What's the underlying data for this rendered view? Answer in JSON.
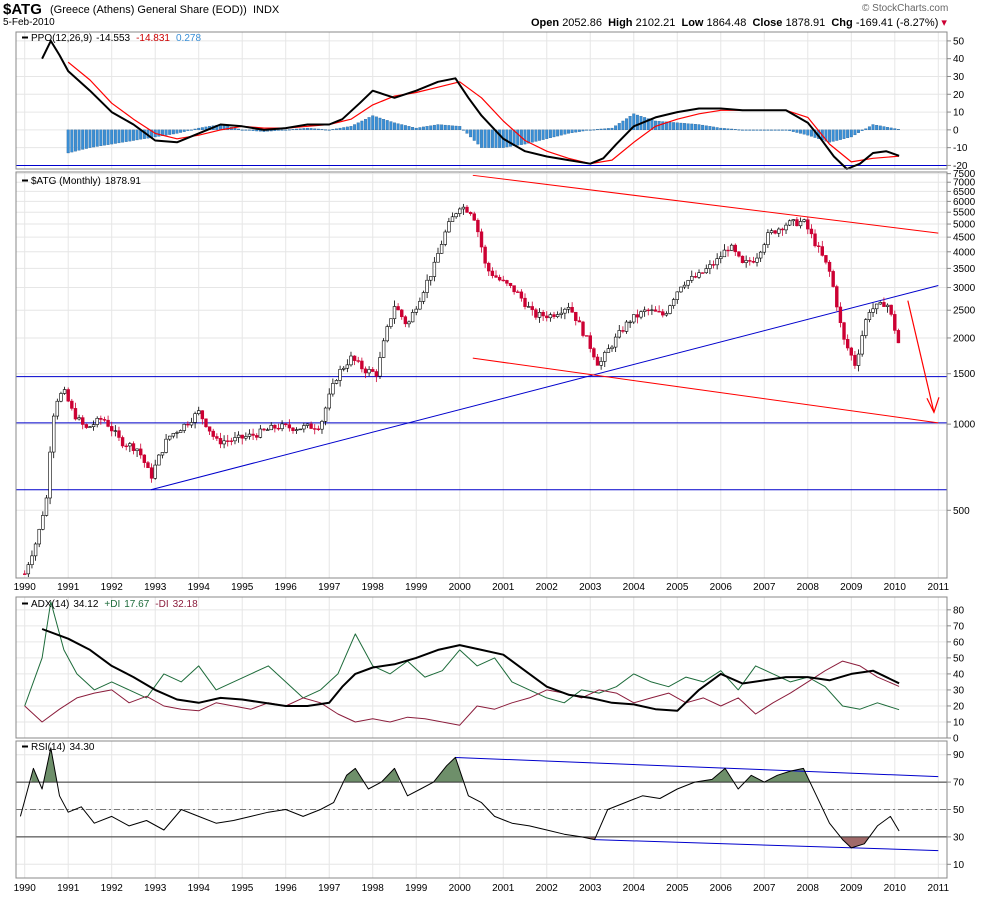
{
  "header": {
    "symbol": "$ATG",
    "name": "(Greece (Athens) General Share (EOD))",
    "exchange": "INDX",
    "date": "5-Feb-2010",
    "open_label": "Open",
    "open": "2052.86",
    "high_label": "High",
    "high": "2102.21",
    "low_label": "Low",
    "low": "1864.48",
    "close_label": "Close",
    "close": "1878.91",
    "chg_label": "Chg",
    "chg": "-169.41 (-8.27%)",
    "watermark": "© StockCharts.com"
  },
  "colors": {
    "price_up": "#000000",
    "price_down": "#cc0033",
    "ppo_line": "#000000",
    "ppo_signal": "#ff0000",
    "histogram": "#3a8fd6",
    "trendline_blue": "#0000cc",
    "channel_red": "#ff0000",
    "plus_di": "#1d6b3a",
    "minus_di": "#8b1d3c",
    "rsi_fill_overbought": "#6e8f6a",
    "rsi_fill_oversold": "#a06a6a"
  },
  "chart_data": [
    {
      "type": "line",
      "panel": "PPO",
      "legend": [
        {
          "text": "PPO(12,26,9)",
          "value": "-14.553"
        },
        {
          "text": "",
          "value": "-14.831"
        },
        {
          "text": "",
          "value": "0.278"
        }
      ],
      "ylim": [
        -22,
        55
      ],
      "yticks": [
        50,
        40,
        30,
        20,
        10,
        0,
        -10,
        -20
      ],
      "hline": -20,
      "series": [
        {
          "role": "ppo",
          "x": [
            1990.4,
            1990.6,
            1990.8,
            1991.0,
            1991.5,
            1992.0,
            1992.5,
            1993.0,
            1993.5,
            1994.0,
            1994.5,
            1995.0,
            1995.5,
            1996.0,
            1996.5,
            1997.0,
            1997.3,
            1997.7,
            1998.0,
            1998.5,
            1999.0,
            1999.5,
            1999.9,
            2000.2,
            2000.5,
            2001.0,
            2001.5,
            2002.0,
            2002.5,
            2003.0,
            2003.3,
            2003.6,
            2004.0,
            2004.5,
            2005.0,
            2005.5,
            2006.0,
            2006.5,
            2007.0,
            2007.5,
            2008.0,
            2008.3,
            2008.6,
            2008.9,
            2009.2,
            2009.5,
            2009.8,
            2010.1
          ],
          "values": [
            40,
            50,
            42,
            33,
            22,
            10,
            3,
            -6,
            -7,
            -2,
            3,
            2,
            0,
            1,
            3,
            3,
            6,
            15,
            22,
            18,
            22,
            27,
            29,
            18,
            8,
            -5,
            -12,
            -15,
            -17,
            -19,
            -16,
            -8,
            2,
            7,
            10,
            12,
            12,
            11,
            11,
            11,
            4,
            -5,
            -15,
            -22,
            -19,
            -13,
            -12,
            -14.553
          ]
        },
        {
          "role": "signal",
          "x": [
            1991.0,
            1991.5,
            1992.0,
            1992.5,
            1993.0,
            1993.5,
            1994.0,
            1994.5,
            1995.0,
            1995.5,
            1996.0,
            1996.5,
            1997.0,
            1997.5,
            1998.0,
            1998.5,
            1999.0,
            1999.5,
            2000.0,
            2000.5,
            2001.0,
            2001.5,
            2002.0,
            2002.5,
            2003.0,
            2003.5,
            2004.0,
            2004.5,
            2005.0,
            2005.5,
            2006.0,
            2006.5,
            2007.0,
            2007.5,
            2008.0,
            2008.5,
            2009.0,
            2009.5,
            2010.1
          ],
          "values": [
            38,
            28,
            15,
            6,
            -2,
            -5,
            -3,
            0,
            2,
            1,
            1,
            2,
            3,
            6,
            14,
            19,
            21,
            24,
            27,
            18,
            5,
            -6,
            -12,
            -16,
            -19,
            -17,
            -7,
            2,
            6,
            9,
            11,
            11,
            11,
            11,
            7,
            -8,
            -18,
            -16,
            -14.831
          ]
        }
      ],
      "histogram": {
        "x": [
          1991.0,
          1991.5,
          1992.0,
          1992.5,
          1993.0,
          1993.5,
          1994.0,
          1994.5,
          1995.0,
          1995.5,
          1996.0,
          1996.5,
          1997.0,
          1997.5,
          1998.0,
          1998.5,
          1999.0,
          1999.5,
          2000.0,
          2000.5,
          2001.0,
          2001.5,
          2002.0,
          2002.5,
          2003.0,
          2003.5,
          2004.0,
          2004.5,
          2005.0,
          2005.5,
          2006.0,
          2006.5,
          2007.0,
          2007.5,
          2008.0,
          2008.5,
          2009.0,
          2009.5,
          2010.1
        ],
        "values": [
          -13,
          -10,
          -8,
          -6,
          -4,
          -2,
          1,
          3,
          0,
          -1,
          0,
          1,
          0,
          2,
          8,
          4,
          1,
          3,
          2,
          -10,
          -10,
          -8,
          -5,
          -2,
          0,
          1,
          9,
          5,
          4,
          3,
          1,
          0,
          0,
          0,
          -3,
          -7,
          -4,
          3,
          0.278
        ]
      }
    },
    {
      "type": "line",
      "panel": "Price",
      "legend": [
        {
          "text": "$ATG (Monthly)",
          "value": "1878.91"
        }
      ],
      "yscale": "log",
      "ylim": [
        290,
        7600
      ],
      "yticks": [
        7500,
        7000,
        6500,
        6000,
        5500,
        5000,
        4500,
        4000,
        3500,
        3000,
        2500,
        2000,
        1500,
        1000,
        500
      ],
      "xlim": [
        1989.8,
        2011.2
      ],
      "xticks": [
        1990,
        1991,
        1992,
        1993,
        1994,
        1995,
        1996,
        1997,
        1998,
        1999,
        2000,
        2001,
        2002,
        2003,
        2004,
        2005,
        2006,
        2007,
        2008,
        2009,
        2010,
        2011
      ],
      "hlines": [
        1465,
        1010,
        590
      ],
      "trendlines": [
        {
          "color": "blue",
          "x": [
            1992.9,
            2011.0
          ],
          "y": [
            590,
            3050
          ]
        },
        {
          "color": "red",
          "x": [
            2000.3,
            2011.0
          ],
          "y": [
            7400,
            4650
          ]
        },
        {
          "color": "red",
          "x": [
            2000.3,
            2011.0
          ],
          "y": [
            1700,
            1010
          ]
        }
      ],
      "arrow": {
        "x": [
          2010.3,
          2010.9
        ],
        "y": [
          2700,
          1100
        ]
      },
      "x": [
        1990.0,
        1990.3,
        1990.5,
        1990.7,
        1990.9,
        1991.1,
        1991.4,
        1991.8,
        1992.2,
        1992.6,
        1992.9,
        1993.3,
        1993.7,
        1994.0,
        1994.4,
        1994.8,
        1995.3,
        1995.8,
        1996.3,
        1996.8,
        1997.2,
        1997.5,
        1997.8,
        1998.1,
        1998.5,
        1998.8,
        1999.1,
        1999.4,
        1999.7,
        2000.0,
        2000.3,
        2000.6,
        2000.9,
        2001.3,
        2001.7,
        2002.1,
        2002.5,
        2002.9,
        2003.2,
        2003.5,
        2003.9,
        2004.3,
        2004.7,
        2005.1,
        2005.5,
        2005.9,
        2006.2,
        2006.5,
        2006.8,
        2007.1,
        2007.5,
        2007.9,
        2008.2,
        2008.5,
        2008.8,
        2009.1,
        2009.4,
        2009.7,
        2009.8,
        2010.1
      ],
      "values": [
        300,
        400,
        550,
        1200,
        1300,
        1100,
        960,
        1050,
        870,
        820,
        650,
        900,
        1000,
        1100,
        870,
        880,
        920,
        980,
        970,
        990,
        1500,
        1700,
        1550,
        1500,
        2600,
        2200,
        2800,
        3500,
        4800,
        5800,
        5500,
        3500,
        3200,
        2900,
        2400,
        2400,
        2600,
        2000,
        1600,
        1900,
        2300,
        2500,
        2400,
        3100,
        3300,
        3700,
        4200,
        3600,
        3800,
        4600,
        5000,
        5100,
        4200,
        3400,
        2000,
        1600,
        2500,
        2600,
        2700,
        1878.91
      ]
    },
    {
      "type": "line",
      "panel": "ADX",
      "legend": [
        {
          "text": "ADX(14)",
          "value": "34.12"
        },
        {
          "text": "+DI",
          "value": "17.67"
        },
        {
          "text": "-DI",
          "value": "32.18"
        }
      ],
      "ylim": [
        0,
        88
      ],
      "yticks": [
        80,
        70,
        60,
        50,
        40,
        30,
        20,
        10,
        0
      ],
      "series": [
        {
          "role": "adx",
          "x": [
            1990.4,
            1991.0,
            1991.5,
            1992.0,
            1992.5,
            1993.0,
            1993.5,
            1994.0,
            1994.5,
            1995.0,
            1995.5,
            1996.0,
            1996.5,
            1997.0,
            1997.3,
            1997.6,
            1998.0,
            1998.5,
            1999.0,
            1999.5,
            2000.0,
            2000.5,
            2001.0,
            2001.5,
            2002.0,
            2002.5,
            2003.0,
            2003.5,
            2004.0,
            2004.5,
            2005.0,
            2005.5,
            2006.0,
            2006.5,
            2007.0,
            2007.5,
            2008.0,
            2008.5,
            2009.0,
            2009.5,
            2010.1
          ],
          "values": [
            68,
            62,
            55,
            45,
            38,
            30,
            24,
            22,
            25,
            24,
            22,
            20,
            20,
            22,
            32,
            40,
            44,
            46,
            50,
            55,
            58,
            55,
            52,
            42,
            32,
            27,
            25,
            22,
            21,
            18,
            17,
            30,
            40,
            34,
            36,
            38,
            38,
            36,
            40,
            42,
            34.12
          ]
        },
        {
          "role": "plus_di",
          "x": [
            1990.0,
            1990.4,
            1990.6,
            1990.9,
            1991.2,
            1991.6,
            1992.0,
            1992.4,
            1992.8,
            1993.2,
            1993.6,
            1994.0,
            1994.4,
            1994.8,
            1995.2,
            1995.6,
            1996.0,
            1996.4,
            1996.8,
            1997.2,
            1997.6,
            1998.0,
            1998.4,
            1998.8,
            1999.2,
            1999.6,
            2000.0,
            2000.4,
            2000.8,
            2001.2,
            2001.6,
            2002.0,
            2002.4,
            2002.8,
            2003.2,
            2003.6,
            2004.0,
            2004.4,
            2004.8,
            2005.2,
            2005.6,
            2006.0,
            2006.4,
            2006.8,
            2007.2,
            2007.6,
            2008.0,
            2008.4,
            2008.8,
            2009.2,
            2009.6,
            2010.1
          ],
          "values": [
            20,
            50,
            85,
            55,
            40,
            30,
            35,
            30,
            25,
            40,
            35,
            45,
            30,
            35,
            40,
            45,
            35,
            25,
            30,
            40,
            65,
            45,
            40,
            48,
            38,
            42,
            55,
            45,
            50,
            35,
            30,
            25,
            22,
            30,
            28,
            32,
            40,
            35,
            32,
            38,
            35,
            42,
            30,
            45,
            40,
            35,
            38,
            32,
            20,
            18,
            22,
            17.67
          ]
        },
        {
          "role": "minus_di",
          "x": [
            1990.0,
            1990.4,
            1990.8,
            1991.2,
            1991.6,
            1992.0,
            1992.4,
            1992.8,
            1993.2,
            1993.6,
            1994.0,
            1994.4,
            1994.8,
            1995.2,
            1995.6,
            1996.0,
            1996.4,
            1996.8,
            1997.2,
            1997.6,
            1998.0,
            1998.4,
            1998.8,
            1999.2,
            1999.6,
            2000.0,
            2000.4,
            2000.8,
            2001.2,
            2001.6,
            2002.0,
            2002.4,
            2002.8,
            2003.2,
            2003.6,
            2004.0,
            2004.4,
            2004.8,
            2005.2,
            2005.6,
            2006.0,
            2006.4,
            2006.8,
            2007.2,
            2007.6,
            2008.0,
            2008.4,
            2008.8,
            2009.2,
            2009.6,
            2010.1
          ],
          "values": [
            20,
            10,
            18,
            25,
            28,
            30,
            22,
            26,
            20,
            18,
            17,
            22,
            20,
            18,
            22,
            20,
            25,
            22,
            15,
            10,
            12,
            10,
            13,
            12,
            10,
            8,
            20,
            18,
            22,
            25,
            30,
            28,
            25,
            30,
            28,
            22,
            25,
            28,
            22,
            25,
            20,
            25,
            15,
            22,
            28,
            35,
            42,
            48,
            45,
            38,
            32.18
          ]
        }
      ]
    },
    {
      "type": "line",
      "panel": "RSI",
      "legend": [
        {
          "text": "RSI(14)",
          "value": "34.30"
        }
      ],
      "ylim": [
        0,
        100
      ],
      "yticks": [
        90,
        70,
        50,
        30,
        10
      ],
      "hlines": [
        70,
        50,
        30
      ],
      "trendlines": [
        {
          "color": "blue",
          "x": [
            1999.9,
            2011.0
          ],
          "y": [
            88,
            74
          ]
        },
        {
          "color": "blue",
          "x": [
            2003.1,
            2011.0
          ],
          "y": [
            28,
            20
          ]
        }
      ],
      "x": [
        1989.9,
        1990.2,
        1990.4,
        1990.6,
        1990.8,
        1991.0,
        1991.3,
        1991.6,
        1992.0,
        1992.4,
        1992.8,
        1993.2,
        1993.6,
        1994.0,
        1994.4,
        1994.8,
        1995.2,
        1995.6,
        1996.0,
        1996.4,
        1996.8,
        1997.1,
        1997.4,
        1997.6,
        1997.9,
        1998.2,
        1998.5,
        1998.8,
        1999.1,
        1999.4,
        1999.7,
        1999.9,
        2000.2,
        2000.5,
        2000.8,
        2001.2,
        2001.6,
        2002.0,
        2002.4,
        2002.8,
        2003.1,
        2003.4,
        2003.8,
        2004.2,
        2004.6,
        2005.0,
        2005.4,
        2005.8,
        2006.1,
        2006.4,
        2006.7,
        2007.0,
        2007.3,
        2007.6,
        2007.9,
        2008.2,
        2008.5,
        2008.8,
        2009.0,
        2009.3,
        2009.6,
        2009.9,
        2010.1
      ],
      "values": [
        45,
        80,
        65,
        95,
        60,
        48,
        52,
        40,
        45,
        38,
        42,
        35,
        50,
        45,
        40,
        42,
        45,
        48,
        50,
        45,
        50,
        55,
        75,
        80,
        65,
        70,
        80,
        60,
        65,
        70,
        82,
        88,
        60,
        55,
        45,
        40,
        38,
        35,
        32,
        30,
        28,
        50,
        55,
        60,
        58,
        65,
        70,
        72,
        80,
        65,
        75,
        70,
        75,
        78,
        80,
        60,
        40,
        28,
        22,
        25,
        38,
        45,
        34.3
      ]
    }
  ]
}
